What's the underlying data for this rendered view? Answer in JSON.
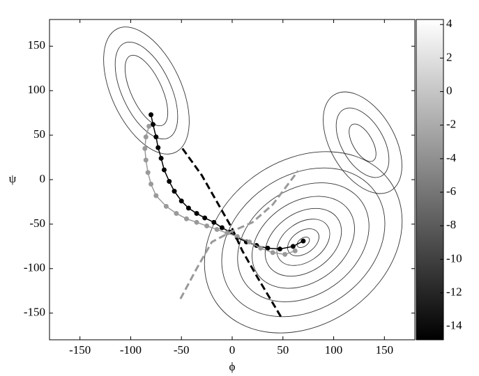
{
  "chart_data": {
    "type": "line",
    "xlabel": "ϕ",
    "ylabel": "ψ",
    "xlim": [
      -180,
      180
    ],
    "ylim": [
      -180,
      180
    ],
    "xticks": [
      -150,
      -100,
      -50,
      0,
      50,
      100,
      150
    ],
    "yticks": [
      -150,
      -100,
      -50,
      0,
      50,
      100,
      150
    ],
    "series": [
      {
        "color": "#000000",
        "marker": true,
        "dashed": false,
        "x": [
          -80,
          -78,
          -75,
          -73,
          -70,
          -67,
          -62,
          -57,
          -50,
          -43,
          -35,
          -27,
          -18,
          -10,
          -2,
          5,
          14,
          24,
          35,
          47,
          60,
          70
        ],
        "y": [
          73,
          62,
          48,
          36,
          24,
          11,
          -2,
          -13,
          -24,
          -32,
          -38,
          -43,
          -48,
          -54,
          -59,
          -65,
          -70,
          -74,
          -77,
          -78,
          -75,
          -69
        ]
      },
      {
        "color": "#999999",
        "marker": true,
        "dashed": false,
        "x": [
          -82,
          -85,
          -86,
          -85,
          -83,
          -80,
          -75,
          -65,
          -55,
          -45,
          -35,
          -25,
          -15,
          -5,
          5,
          17,
          28,
          40,
          52,
          62
        ],
        "y": [
          60,
          48,
          35,
          22,
          8,
          -5,
          -18,
          -30,
          -38,
          -44,
          -48,
          -52,
          -56,
          -60,
          -64,
          -70,
          -77,
          -82,
          -84,
          -80
        ]
      },
      {
        "color": "#000000",
        "marker": false,
        "dashed": true,
        "x": [
          -49,
          -30,
          -15,
          0,
          10,
          25,
          49
        ],
        "y": [
          35,
          5,
          -25,
          -55,
          -80,
          -110,
          -156
        ]
      },
      {
        "color": "#999999",
        "marker": false,
        "dashed": true,
        "x": [
          -51,
          -35,
          -20,
          0,
          20,
          40,
          65
        ],
        "y": [
          -134,
          -100,
          -70,
          -58,
          -48,
          -28,
          10
        ]
      }
    ],
    "colorbar": {
      "lim": [
        -14.8,
        4.3
      ],
      "ticks": [
        4,
        2,
        0,
        -2,
        -4,
        -6,
        -8,
        -10,
        -12,
        -14
      ]
    }
  }
}
